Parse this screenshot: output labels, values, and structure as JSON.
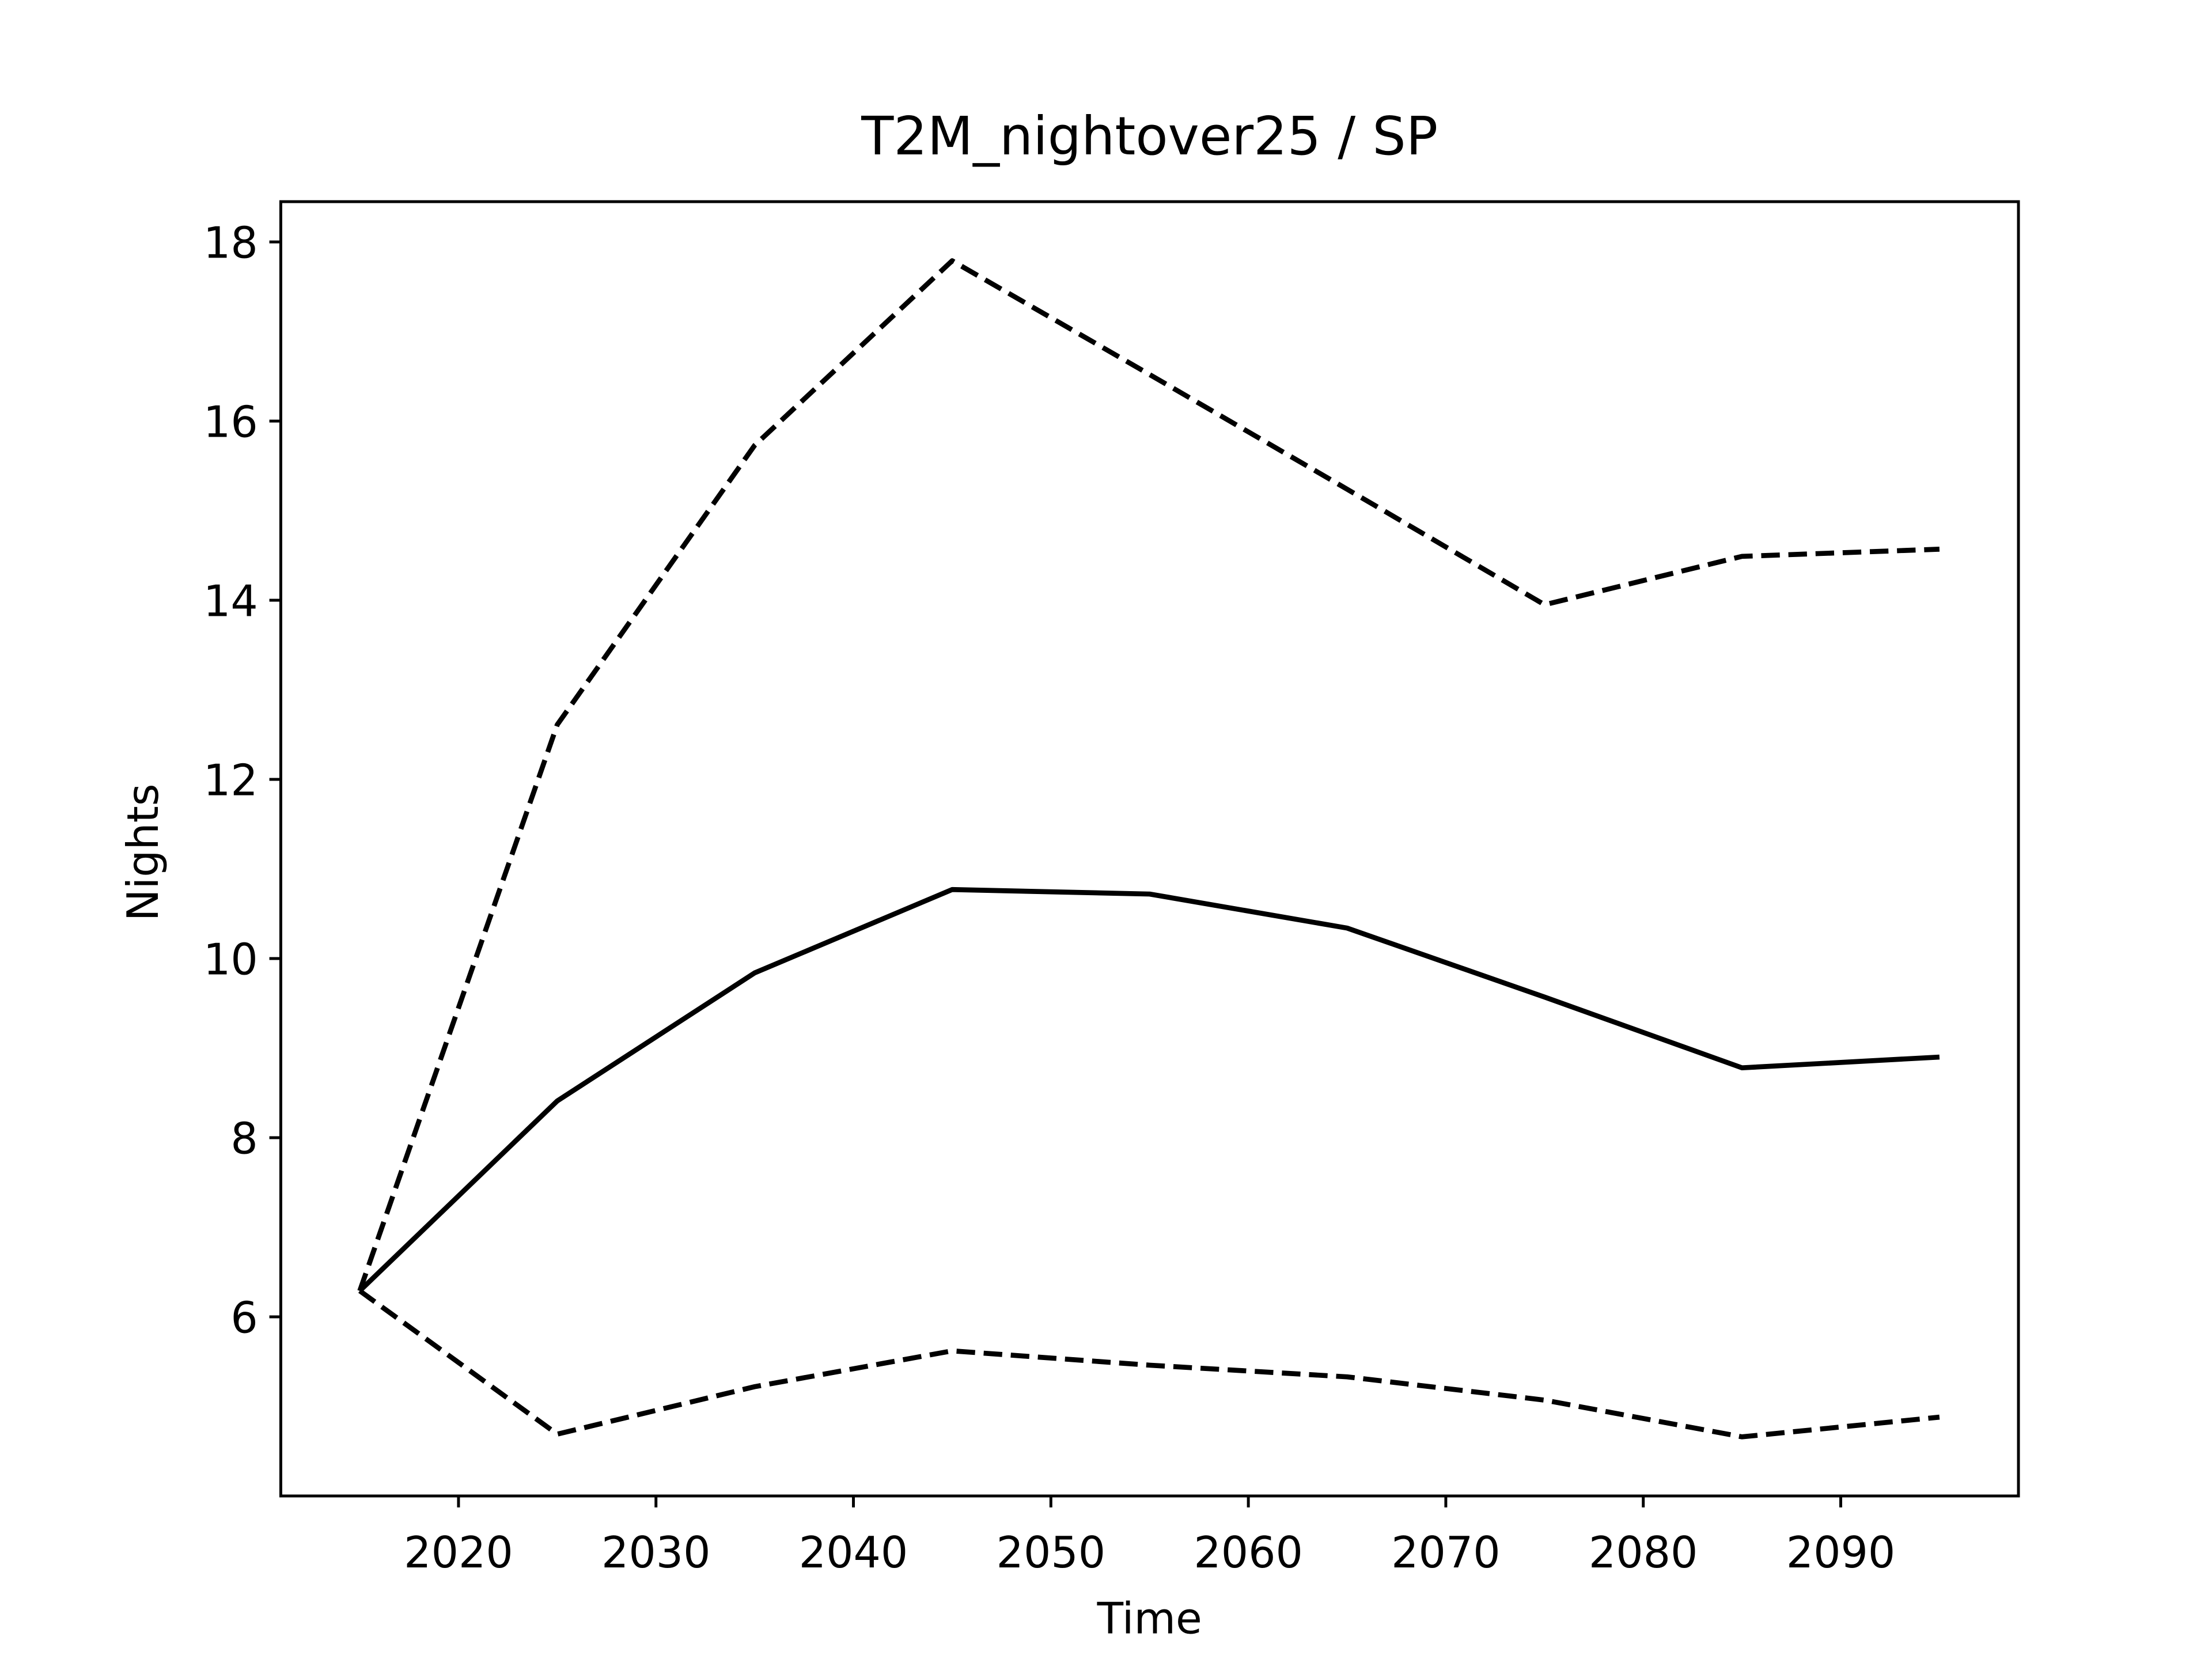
{
  "chart_data": {
    "type": "line",
    "title": "T2M_nightover25 / SP",
    "xlabel": "Time",
    "ylabel": "Nights",
    "x": [
      2015,
      2025,
      2035,
      2045,
      2055,
      2065,
      2075,
      2085,
      2095
    ],
    "series": [
      {
        "color": "#000000",
        "style": "solid",
        "values": [
          6.29,
          8.41,
          9.84,
          10.77,
          10.72,
          10.34,
          9.57,
          8.78,
          8.9
        ]
      },
      {
        "color": "#000000",
        "style": "dashed",
        "values": [
          6.29,
          12.61,
          15.73,
          17.79,
          16.52,
          15.24,
          13.95,
          14.49,
          14.57
        ]
      },
      {
        "color": "#000000",
        "style": "dashed",
        "values": [
          6.29,
          4.69,
          5.22,
          5.62,
          5.46,
          5.33,
          5.07,
          4.66,
          4.88
        ]
      }
    ],
    "xlim": [
      2011,
      2099
    ],
    "ylim": [
      4.0,
      18.45
    ],
    "xticks": [
      2020,
      2030,
      2040,
      2050,
      2060,
      2070,
      2080,
      2090
    ],
    "yticks": [
      6,
      8,
      10,
      12,
      14,
      16,
      18
    ],
    "grid": false
  }
}
